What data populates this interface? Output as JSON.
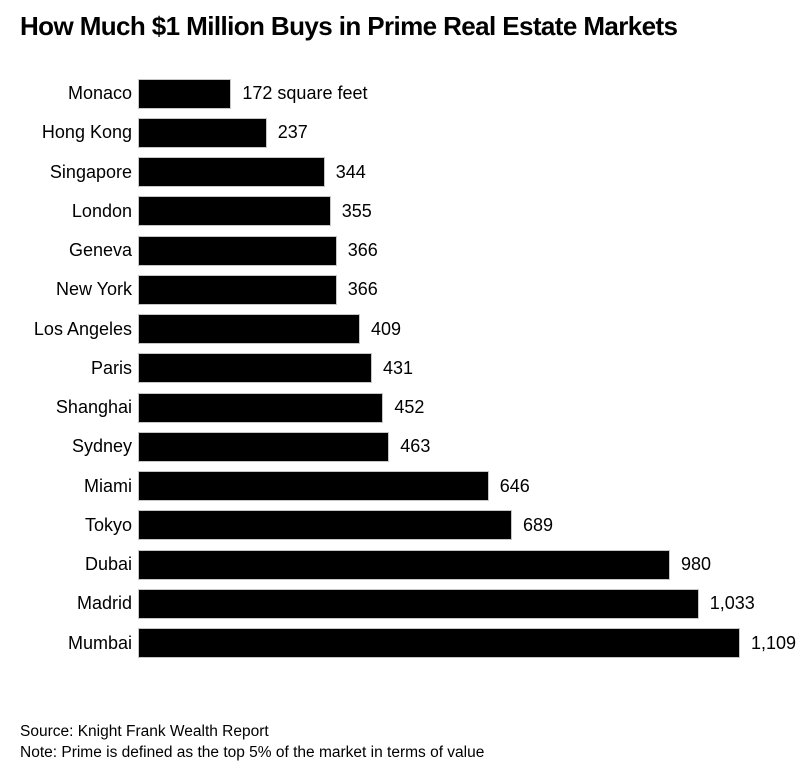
{
  "title": "How Much $1 Million Buys in Prime Real Estate Markets",
  "chart_data": {
    "type": "bar",
    "orientation": "horizontal",
    "title": "How Much $1 Million Buys in Prime Real Estate Markets",
    "xlabel": "",
    "ylabel": "",
    "unit": "square feet",
    "xlim": [
      0,
      1109
    ],
    "grid": false,
    "legend": false,
    "bar_color": "#000000",
    "bar_border_color": "#c6c6c6",
    "categories": [
      "Monaco",
      "Hong Kong",
      "Singapore",
      "London",
      "Geneva",
      "New York",
      "Los Angeles",
      "Paris",
      "Shanghai",
      "Sydney",
      "Miami",
      "Tokyo",
      "Dubai",
      "Madrid",
      "Mumbai"
    ],
    "values": [
      172,
      237,
      344,
      355,
      366,
      366,
      409,
      431,
      452,
      463,
      646,
      689,
      980,
      1033,
      1109
    ],
    "value_labels": [
      "172 square feet",
      "237",
      "344",
      "355",
      "366",
      "366",
      "409",
      "431",
      "452",
      "463",
      "646",
      "689",
      "980",
      "1,033",
      "1,109"
    ]
  },
  "footer": {
    "source": "Source: Knight Frank Wealth Report",
    "note": "Note: Prime is defined as the top 5% of the market in terms of value"
  }
}
